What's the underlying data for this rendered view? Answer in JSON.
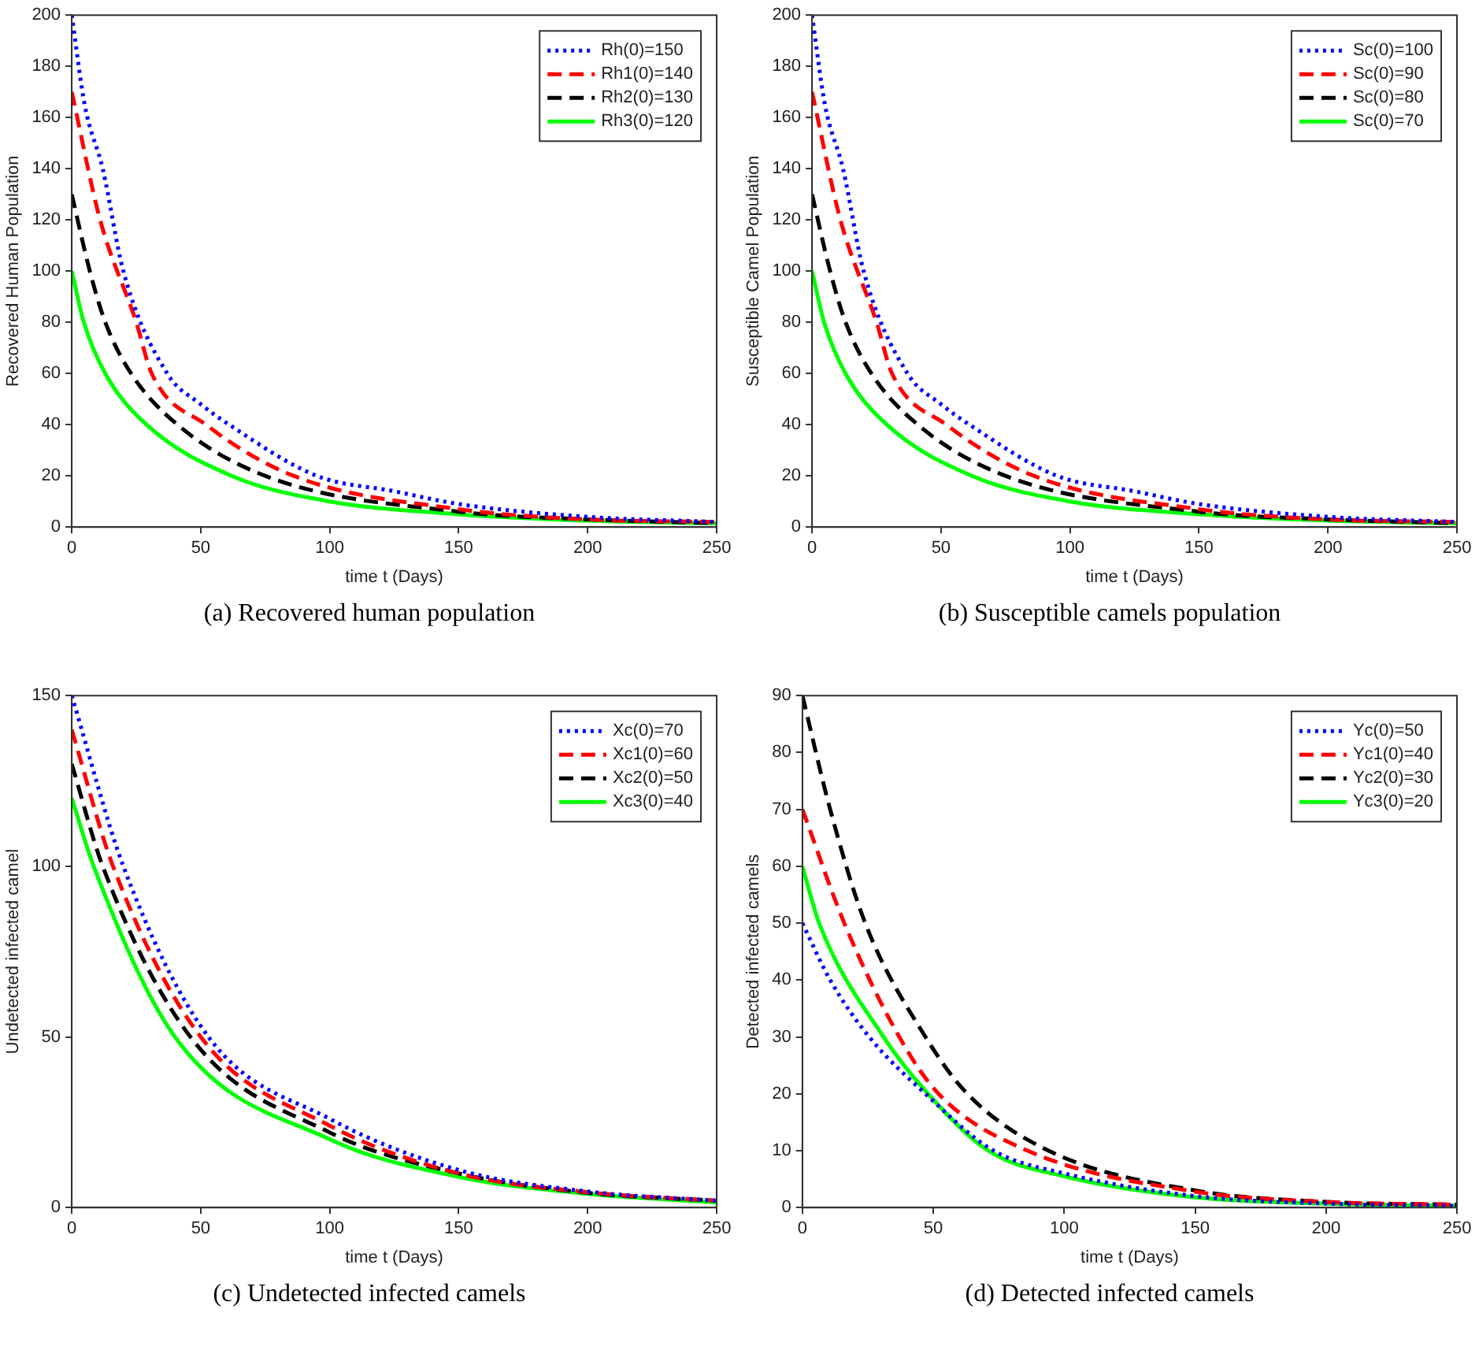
{
  "chart_data": [
    {
      "type": "line",
      "xlabel": "time t (Days)",
      "ylabel": "Recovered Human Population",
      "xlim": [
        0,
        250
      ],
      "ylim": [
        0,
        200
      ],
      "xticks": [
        0,
        50,
        100,
        150,
        200,
        250
      ],
      "yticks": [
        0,
        20,
        40,
        60,
        80,
        100,
        120,
        140,
        160,
        180,
        200
      ],
      "grid": false,
      "legend": "top right",
      "marker": "none",
      "annotations": [
        "(a) Recovered human population"
      ],
      "series": [
        {
          "name": "Rh(0)=150",
          "color": "#0000ff",
          "line_style": "dotted",
          "x": [
            0,
            5,
            12,
            20,
            37,
            50,
            61,
            95,
            125,
            150,
            200,
            250
          ],
          "values": [
            200,
            165,
            140,
            100,
            60,
            48,
            40,
            20,
            14,
            9,
            4,
            2
          ]
        },
        {
          "name": "Rh1(0)=140",
          "color": "#ff0000",
          "line_style": "dashed",
          "x": [
            0,
            11,
            25,
            31,
            52,
            86,
            150,
            200,
            250
          ],
          "values": [
            170,
            120,
            80,
            60,
            40,
            20,
            7,
            3,
            2
          ]
        },
        {
          "name": "Rh2(0)=130",
          "color": "#000000",
          "line_style": "dashed",
          "x": [
            0,
            7,
            13,
            23,
            41,
            75,
            150,
            200,
            250
          ],
          "values": [
            130,
            100,
            80,
            60,
            40,
            20,
            6,
            3,
            1.5
          ]
        },
        {
          "name": "Rh3(0)=120",
          "color": "#00ff00",
          "line_style": "solid",
          "x": [
            0,
            4.7,
            13,
            29,
            62,
            100,
            150,
            200,
            250
          ],
          "values": [
            100,
            80,
            60,
            40,
            20,
            10,
            5,
            2.5,
            1.5
          ]
        }
      ]
    },
    {
      "type": "line",
      "xlabel": "time t (Days)",
      "ylabel": "Susceptible Camel Population",
      "xlim": [
        0,
        250
      ],
      "ylim": [
        0,
        200
      ],
      "xticks": [
        0,
        50,
        100,
        150,
        200,
        250
      ],
      "yticks": [
        0,
        20,
        40,
        60,
        80,
        100,
        120,
        140,
        160,
        180,
        200
      ],
      "grid": false,
      "legend": "top right",
      "marker": "none",
      "annotations": [
        "(b) Susceptible camels population"
      ],
      "series": [
        {
          "name": "Sc(0)=100",
          "color": "#0000ff",
          "line_style": "dotted",
          "x": [
            0,
            5,
            12,
            20,
            37,
            50,
            61,
            95,
            125,
            150,
            200,
            250
          ],
          "values": [
            200,
            165,
            140,
            100,
            60,
            48,
            40,
            20,
            14,
            9,
            4,
            2
          ]
        },
        {
          "name": "Sc(0)=90",
          "color": "#ff0000",
          "line_style": "dashed",
          "x": [
            0,
            11,
            25,
            31,
            52,
            86,
            150,
            200,
            250
          ],
          "values": [
            170,
            120,
            80,
            60,
            40,
            20,
            7,
            3,
            2
          ]
        },
        {
          "name": "Sc(0)=80",
          "color": "#000000",
          "line_style": "dashed",
          "x": [
            0,
            7,
            13,
            23,
            41,
            75,
            150,
            200,
            250
          ],
          "values": [
            130,
            100,
            80,
            60,
            40,
            20,
            6,
            3,
            1.5
          ]
        },
        {
          "name": "Sc(0)=70",
          "color": "#00ff00",
          "line_style": "solid",
          "x": [
            0,
            4.7,
            13,
            29,
            62,
            100,
            150,
            200,
            250
          ],
          "values": [
            100,
            80,
            60,
            40,
            20,
            10,
            5,
            2.5,
            1.5
          ]
        }
      ]
    },
    {
      "type": "line",
      "xlabel": "time t (Days)",
      "ylabel": "Undetected infected camel",
      "xlim": [
        0,
        250
      ],
      "ylim": [
        0,
        150
      ],
      "xticks": [
        0,
        50,
        100,
        150,
        200,
        250
      ],
      "yticks": [
        0,
        50,
        100,
        150
      ],
      "grid": false,
      "legend": "top right",
      "marker": "none",
      "annotations": [
        "(c) Undetected infected camels"
      ],
      "series": [
        {
          "name": "Xc(0)=70",
          "color": "#0000ff",
          "line_style": "dotted",
          "x": [
            0,
            20,
            53,
            100,
            150,
            200,
            250
          ],
          "values": [
            150,
            100,
            50,
            26,
            11,
            4.7,
            2
          ]
        },
        {
          "name": "Xc1(0)=60",
          "color": "#ff0000",
          "line_style": "dashed",
          "x": [
            0,
            16,
            50,
            100,
            150,
            200,
            250
          ],
          "values": [
            140,
            100,
            50,
            24,
            10,
            4.5,
            2
          ]
        },
        {
          "name": "Xc2(0)=50",
          "color": "#000000",
          "line_style": "dashed",
          "x": [
            0,
            12,
            46,
            100,
            150,
            200,
            250
          ],
          "values": [
            130,
            100,
            50,
            22,
            10,
            4.3,
            2
          ]
        },
        {
          "name": "Xc3(0)=40",
          "color": "#00ff00",
          "line_style": "solid",
          "x": [
            0,
            8.5,
            40,
            100,
            150,
            200,
            250
          ],
          "values": [
            120,
            100,
            50,
            20,
            9,
            4,
            1.5
          ]
        }
      ]
    },
    {
      "type": "line",
      "xlabel": "time t (Days)",
      "ylabel": "Detected infected camels",
      "xlim": [
        0,
        250
      ],
      "ylim": [
        0,
        90
      ],
      "xticks": [
        0,
        50,
        100,
        150,
        200,
        250
      ],
      "yticks": [
        0,
        10,
        20,
        30,
        40,
        50,
        60,
        70,
        80,
        90
      ],
      "grid": false,
      "legend": "top right",
      "marker": "none",
      "annotations": [
        "(d) Detected infected camels"
      ],
      "series": [
        {
          "name": "Yc(0)=50",
          "color": "#0000ff",
          "line_style": "dotted",
          "x": [
            0,
            10.6,
            25.5,
            47,
            73,
            100,
            150,
            200,
            250
          ],
          "values": [
            50,
            40,
            30,
            20,
            10,
            6,
            2,
            0.7,
            0.3
          ]
        },
        {
          "name": "Yc1(0)=40",
          "color": "#ff0000",
          "line_style": "dashed",
          "x": [
            0,
            16,
            37,
            52,
            86,
            150,
            200,
            250
          ],
          "values": [
            70,
            50,
            30,
            20,
            10,
            2.8,
            1,
            0.5
          ]
        },
        {
          "name": "Yc2(0)=30",
          "color": "#000000",
          "line_style": "dashed",
          "x": [
            0,
            10.6,
            24,
            47,
            63,
            94,
            150,
            200,
            250
          ],
          "values": [
            90,
            70,
            50,
            30,
            20,
            10,
            3,
            1,
            0.5
          ]
        },
        {
          "name": "Yc3(0)=20",
          "color": "#00ff00",
          "line_style": "solid",
          "x": [
            0,
            6.4,
            31,
            48,
            71,
            100,
            150,
            200,
            250
          ],
          "values": [
            60,
            50,
            30,
            20,
            10,
            5.5,
            1.8,
            0.7,
            0.3
          ]
        }
      ]
    }
  ]
}
